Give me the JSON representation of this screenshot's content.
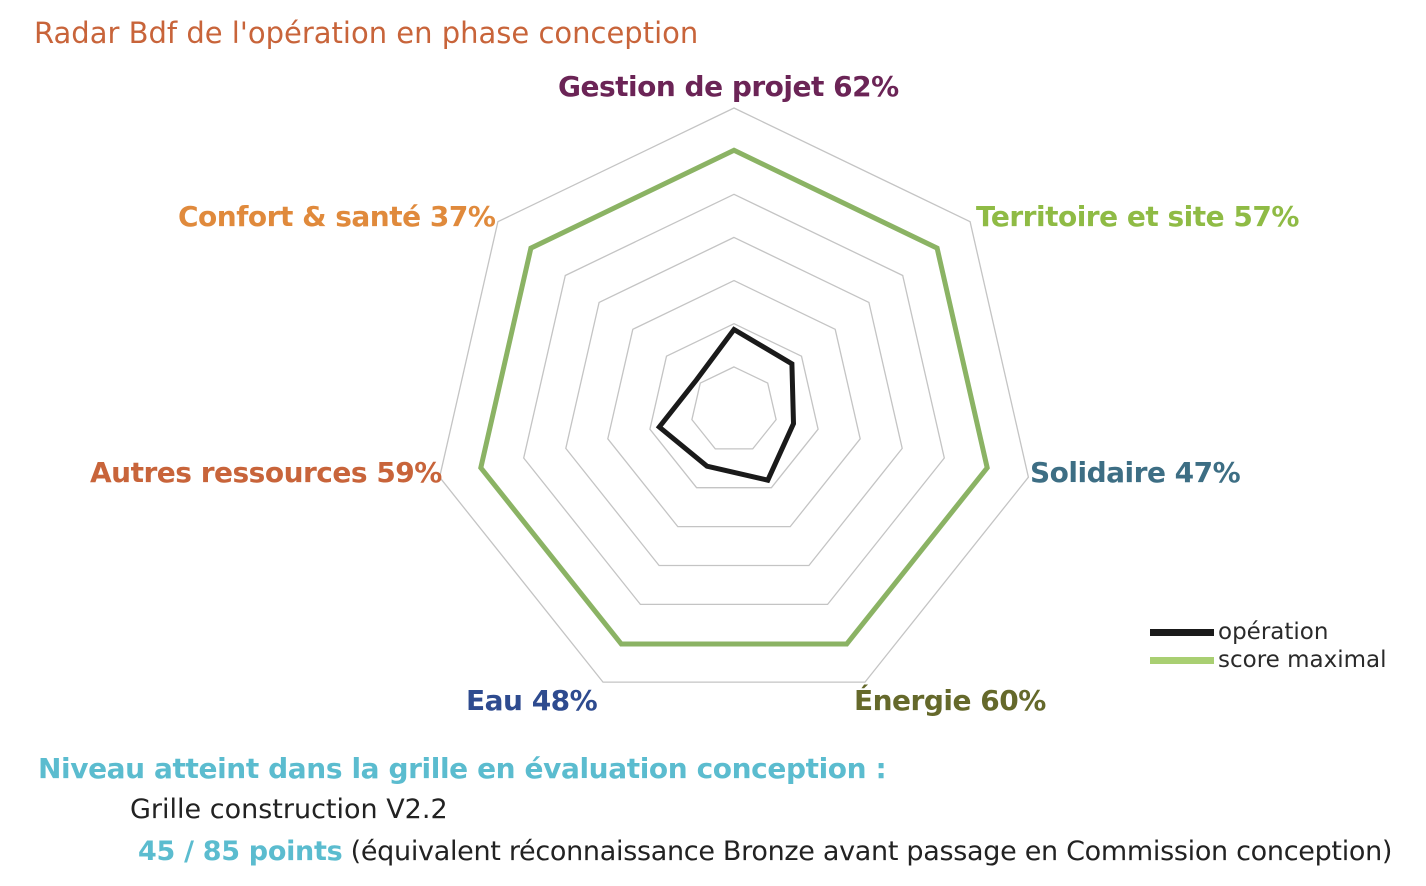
{
  "title": "Radar Bdf de l'opération en phase conception",
  "chart_data": {
    "type": "radar",
    "axes": [
      {
        "label": "Gestion de projet 62%",
        "color": "#6b2456"
      },
      {
        "label": "Territoire et site 57%",
        "color": "#8fbb45"
      },
      {
        "label": "Solidaire 47%",
        "color": "#3d6e84"
      },
      {
        "label": "Énergie 60%",
        "color": "#65692b"
      },
      {
        "label": "Eau 48%",
        "color": "#2e4b8f"
      },
      {
        "label": "Autres ressources 59%",
        "color": "#c8643a"
      },
      {
        "label": "Confort & santé 37%",
        "color": "#e08a3c"
      }
    ],
    "series": [
      {
        "name": "opération",
        "color": "#1a1a1a",
        "values": [
          62,
          57,
          47,
          60,
          48,
          59,
          37
        ]
      },
      {
        "name": "score maximal",
        "color": "#8bb364",
        "values": [
          100,
          100,
          100,
          100,
          100,
          100,
          100
        ]
      }
    ],
    "rlim": [
      0,
      100
    ],
    "grid_levels": 7,
    "legend_position": "bottom-right"
  },
  "footer": {
    "heading": "Niveau atteint dans la grille en évaluation conception :",
    "grid_version": "Grille construction V2.2",
    "points": "45 / 85 points",
    "points_note": " (équivalent réconnaissance Bronze avant passage en Commission conception)"
  }
}
